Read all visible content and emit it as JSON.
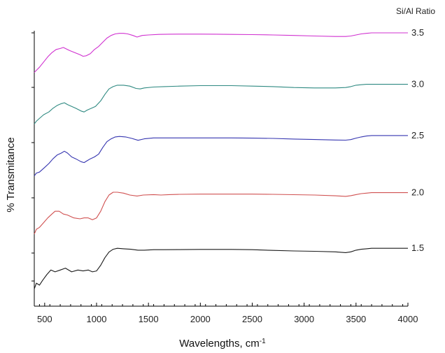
{
  "chart_data": {
    "type": "line",
    "xlabel": "Wavelengths, cm",
    "xlabel_superscript": "-1",
    "ylabel": "% Transmitance",
    "legend_title": "Si/Al Ratio",
    "xlim": [
      400,
      4000
    ],
    "x_ticks": [
      500,
      1000,
      1500,
      2000,
      2500,
      3000,
      3500,
      4000
    ],
    "y_ticks_labeled": false,
    "ylim": [
      0,
      100
    ],
    "grid": false,
    "series": [
      {
        "name": "1.5",
        "color": "#1a1a1a",
        "x": [
          400,
          420,
          450,
          480,
          520,
          560,
          600,
          650,
          700,
          760,
          820,
          870,
          920,
          960,
          1000,
          1040,
          1080,
          1120,
          1160,
          1200,
          1260,
          1330,
          1400,
          1460,
          1550,
          1650,
          1800,
          2000,
          2150,
          2300,
          2500,
          2700,
          2900,
          3100,
          3300,
          3400,
          3450,
          3500,
          3550,
          3600,
          3650,
          3700,
          3800,
          3900,
          4000
        ],
        "y": [
          5,
          11,
          9,
          14,
          20,
          25,
          23,
          25,
          27,
          23,
          25,
          24,
          25,
          23,
          24,
          30,
          38,
          44,
          47,
          48,
          47.5,
          47,
          46,
          46,
          46.5,
          46.5,
          46.6,
          46.8,
          46.8,
          46.8,
          46.5,
          45.8,
          45.2,
          44.8,
          44.2,
          43.4,
          44.2,
          46,
          47,
          47.5,
          48,
          48,
          48,
          48,
          48
        ]
      },
      {
        "name": "2.0",
        "color": "#d05050",
        "x": [
          400,
          420,
          450,
          490,
          530,
          570,
          600,
          640,
          680,
          720,
          780,
          840,
          880,
          920,
          960,
          1000,
          1040,
          1080,
          1120,
          1160,
          1200,
          1260,
          1320,
          1390,
          1450,
          1550,
          1620,
          1700,
          1800,
          2000,
          2150,
          2300,
          2500,
          2700,
          2900,
          3100,
          3300,
          3400,
          3450,
          3500,
          3550,
          3600,
          3650,
          3700,
          3800,
          3900,
          4000
        ],
        "y": [
          20,
          25,
          27,
          32,
          37,
          41,
          44,
          44,
          41,
          40,
          37,
          36,
          37,
          37,
          35,
          37,
          44,
          54,
          61,
          64,
          64,
          63,
          61,
          60,
          61,
          61.5,
          61,
          61.5,
          61.8,
          62,
          62,
          62,
          62,
          61.8,
          61.4,
          61,
          60.2,
          59.6,
          60.4,
          61.5,
          62.5,
          63,
          63.5,
          63.5,
          63.5,
          63.5,
          63.5
        ]
      },
      {
        "name": "2.5",
        "color": "#3535b0",
        "x": [
          400,
          420,
          450,
          490,
          540,
          580,
          620,
          660,
          690,
          720,
          760,
          800,
          850,
          880,
          910,
          940,
          980,
          1020,
          1060,
          1100,
          1140,
          1180,
          1220,
          1280,
          1340,
          1400,
          1460,
          1550,
          1650,
          1800,
          2000,
          2150,
          2300,
          2500,
          2700,
          2900,
          3100,
          3300,
          3400,
          3450,
          3500,
          3550,
          3600,
          3650,
          3700,
          3800,
          3900,
          4000
        ],
        "y": [
          37,
          40,
          41,
          45,
          50,
          55,
          59,
          61,
          63,
          61,
          57,
          55,
          52,
          51,
          53,
          55,
          57,
          60,
          67,
          73,
          76,
          78,
          78.5,
          78,
          76.5,
          74.5,
          76,
          77,
          77,
          77,
          77,
          77,
          77,
          76.8,
          76.5,
          75.8,
          75.3,
          74.8,
          74.6,
          75.2,
          76.8,
          78,
          79,
          79.5,
          79.5,
          79.5,
          79.5,
          79.5
        ]
      },
      {
        "name": "3.0",
        "color": "#2f8a82",
        "x": [
          400,
          420,
          450,
          490,
          540,
          580,
          620,
          660,
          690,
          720,
          760,
          800,
          850,
          880,
          910,
          950,
          990,
          1040,
          1080,
          1120,
          1160,
          1200,
          1260,
          1320,
          1380,
          1420,
          1460,
          1550,
          1650,
          1800,
          2000,
          2150,
          2300,
          2500,
          2700,
          2900,
          3100,
          3300,
          3400,
          3450,
          3500,
          3550,
          3600,
          3650,
          3700,
          3800,
          3900,
          4000
        ],
        "y": [
          49,
          52,
          55,
          59,
          62,
          66,
          69,
          71,
          72,
          70,
          68,
          66,
          63,
          62,
          64,
          66,
          68,
          74,
          81,
          87,
          89.5,
          91,
          91,
          90,
          87.5,
          87,
          88,
          89,
          89.5,
          90,
          90.5,
          90.5,
          90.5,
          90,
          89.5,
          88.5,
          88,
          88,
          88.5,
          89.5,
          91,
          91.5,
          92,
          92,
          92,
          92,
          92,
          92
        ]
      },
      {
        "name": "3.5",
        "color": "#d030d0",
        "x": [
          400,
          420,
          450,
          490,
          530,
          570,
          610,
          650,
          680,
          700,
          740,
          790,
          840,
          870,
          900,
          940,
          980,
          1020,
          1060,
          1100,
          1140,
          1180,
          1220,
          1260,
          1300,
          1350,
          1390,
          1440,
          1500,
          1600,
          1700,
          1800,
          1900,
          2000,
          2150,
          2300,
          2500,
          2700,
          2900,
          3100,
          3300,
          3400,
          3450,
          3500,
          3550,
          3600,
          3650,
          3700,
          3800,
          3900,
          4000
        ],
        "y": [
          62,
          64,
          67,
          72,
          77,
          81,
          84,
          85,
          86,
          85,
          83,
          81,
          79,
          77.5,
          78,
          80,
          84,
          87,
          91,
          95,
          97.5,
          99,
          99.5,
          99.5,
          99,
          97.5,
          96,
          97.5,
          98,
          98.5,
          98.7,
          98.8,
          98.8,
          98.8,
          98.7,
          98.5,
          98.3,
          98,
          97.5,
          97,
          96.5,
          96.5,
          97,
          98,
          99,
          99.5,
          100,
          100,
          100,
          100,
          100
        ]
      }
    ]
  }
}
